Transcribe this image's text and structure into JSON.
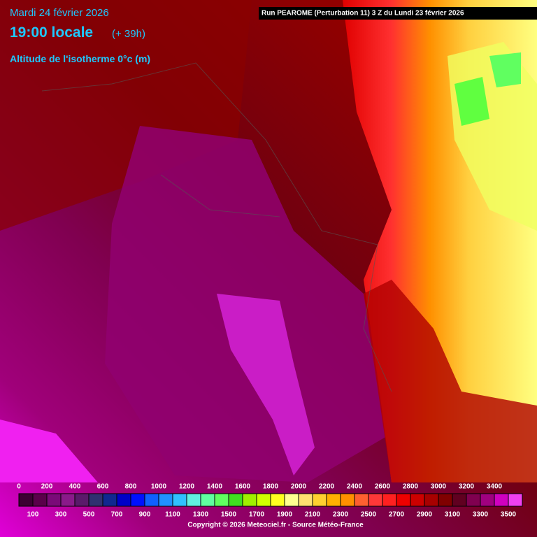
{
  "header": {
    "date": "Mardi 24 février 2026",
    "time": "19:00 locale",
    "offset": "(+ 39h)",
    "parameter": "Altitude de l'isotherme 0°c (m)",
    "run": "Run PEAROME (Perturbation 11) 3 Z du Lundi 23 février 2026"
  },
  "legend": {
    "values": [
      0,
      100,
      200,
      300,
      400,
      500,
      600,
      700,
      800,
      900,
      1000,
      1100,
      1200,
      1300,
      1400,
      1500,
      1600,
      1700,
      1800,
      1900,
      2000,
      2100,
      2200,
      2300,
      2400,
      2500,
      2600,
      2700,
      2800,
      2900,
      3000,
      3100,
      3200,
      3300,
      3400,
      3500
    ],
    "colors": [
      "#3c0032",
      "#5a004a",
      "#7a0a78",
      "#8a1a8a",
      "#5a1a6a",
      "#303070",
      "#102890",
      "#0000c8",
      "#0010ff",
      "#1060ff",
      "#2090ff",
      "#30c0ff",
      "#60f0e0",
      "#60ffa0",
      "#60ff60",
      "#40e020",
      "#a0f000",
      "#d0ff00",
      "#ffff20",
      "#ffff90",
      "#ffe070",
      "#ffd030",
      "#ffb000",
      "#ff9000",
      "#ff6030",
      "#ff3838",
      "#ff2020",
      "#ee0000",
      "#cc0000",
      "#a80000",
      "#800000",
      "#600020",
      "#800050",
      "#a00080",
      "#d000c0",
      "#f040f0"
    ]
  },
  "footer": {
    "copyright": "Copyright © 2026 Meteociel.fr - Source Météo-France"
  }
}
